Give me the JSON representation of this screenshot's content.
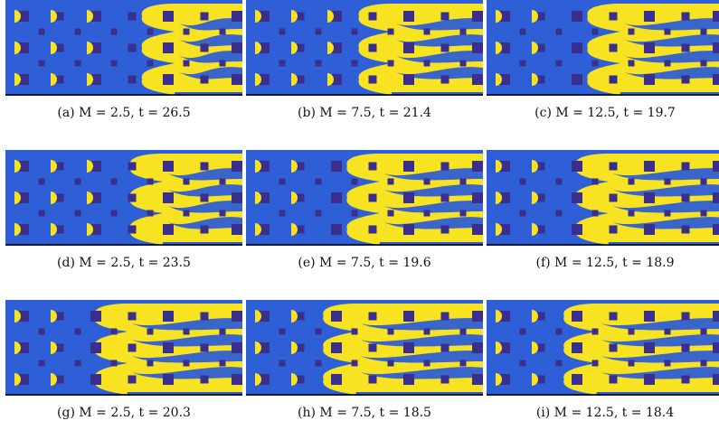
{
  "figure": {
    "colors": {
      "background_phase": "#2f5fd6",
      "invading_phase": "#f7e321",
      "obstacle": "#3a2f8c",
      "border": "#000000"
    },
    "panels": [
      {
        "caption": "(a) M = 2.5,  t = 26.5",
        "front": 0.6
      },
      {
        "caption": "(b) M = 7.5,  t = 21.4",
        "front": 0.5
      },
      {
        "caption": "(c) M = 12.5,  t = 19.7",
        "front": 0.45
      },
      {
        "caption": "(d) M = 2.5,  t = 23.5",
        "front": 0.55
      },
      {
        "caption": "(e) M = 7.5,  t = 19.6",
        "front": 0.45
      },
      {
        "caption": "(f) M = 12.5,  t = 18.9",
        "front": 0.4
      },
      {
        "caption": "(g) M = 2.5,  t = 20.3",
        "front": 0.4
      },
      {
        "caption": "(h) M = 7.5,  t = 18.5",
        "front": 0.35
      },
      {
        "caption": "(i) M = 12.5,  t = 18.4",
        "front": 0.35
      }
    ]
  }
}
